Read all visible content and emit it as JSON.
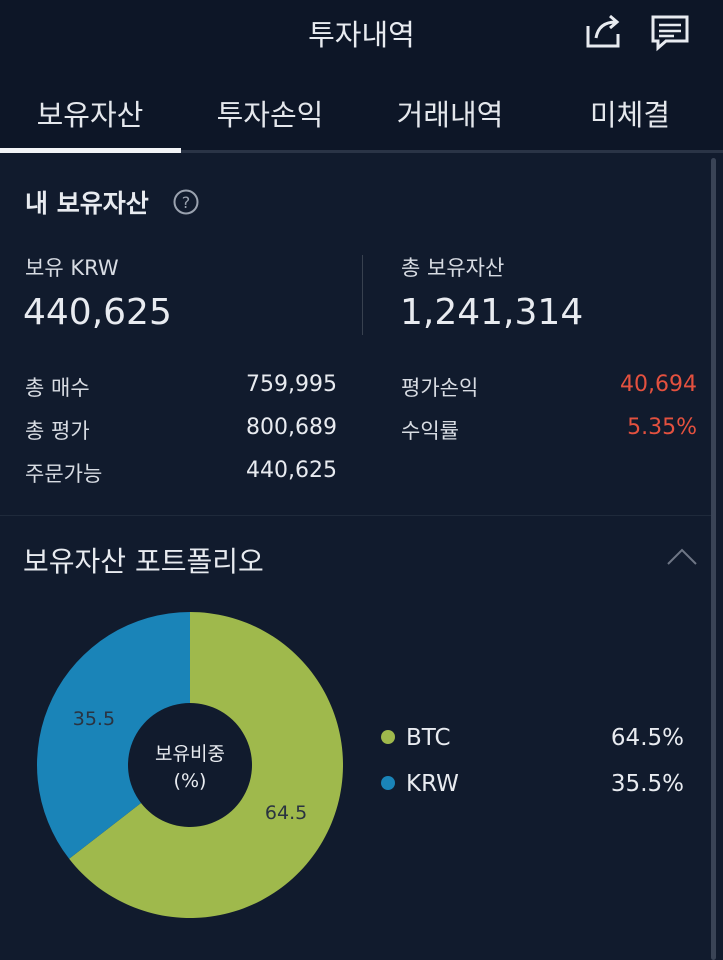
{
  "header": {
    "title": "투자내역"
  },
  "tabs": [
    "보유자산",
    "투자손익",
    "거래내역",
    "미체결"
  ],
  "summary": {
    "title": "내 보유자산",
    "krw_label": "보유 KRW",
    "krw_value": "440,625",
    "total_label": "총 보유자산",
    "total_value": "1,241,314",
    "left_rows": [
      [
        "총 매수",
        "759,995"
      ],
      [
        "총 평가",
        "800,689"
      ],
      [
        "주문가능",
        "440,625"
      ]
    ],
    "right_rows": [
      [
        "평가손익",
        "40,694"
      ],
      [
        "수익률",
        "5.35%"
      ]
    ]
  },
  "portfolio": {
    "title": "보유자산 포트폴리오"
  },
  "chart_data": {
    "type": "pie",
    "center_label": [
      "보유비중",
      "(%)"
    ],
    "categories": [
      "BTC",
      "KRW"
    ],
    "values": [
      64.5,
      35.5
    ],
    "value_labels": [
      "64.5%",
      "35.5%"
    ],
    "colors": [
      "#9fb94c",
      "#1a84b8"
    ]
  }
}
